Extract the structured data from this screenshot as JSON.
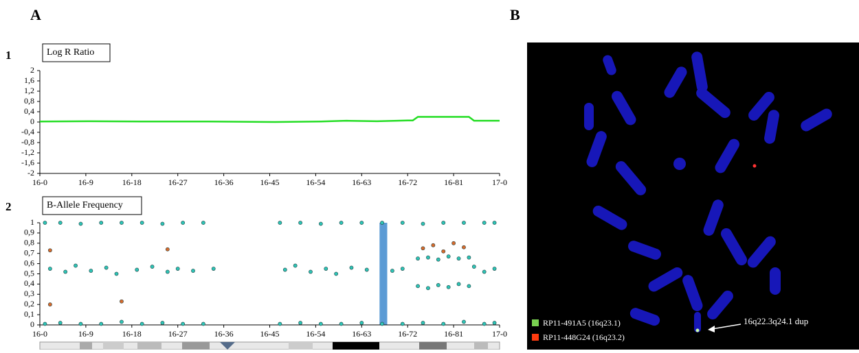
{
  "panel_labels": {
    "a": "A",
    "b": "B",
    "a1": "1",
    "a2": "2"
  },
  "chart_data": [
    {
      "type": "line",
      "title": "Log R Ratio",
      "xlim": [
        0,
        90
      ],
      "xticks": [
        {
          "value": 0,
          "label": "16-0"
        },
        {
          "value": 9,
          "label": "16-9"
        },
        {
          "value": 18,
          "label": "16-18"
        },
        {
          "value": 27,
          "label": "16-27"
        },
        {
          "value": 36,
          "label": "16-36"
        },
        {
          "value": 45,
          "label": "16-45"
        },
        {
          "value": 54,
          "label": "16-54"
        },
        {
          "value": 63,
          "label": "16-63"
        },
        {
          "value": 72,
          "label": "16-72"
        },
        {
          "value": 81,
          "label": "16-81"
        },
        {
          "value": 90,
          "label": "17-0"
        }
      ],
      "ylim": [
        -2,
        2
      ],
      "yticks": [
        2,
        {
          "value": 1.6,
          "label": "1,6"
        },
        {
          "value": 1.2,
          "label": "1,2"
        },
        {
          "value": 0.8,
          "label": "0,8"
        },
        {
          "value": 0.4,
          "label": "0,4"
        },
        0,
        {
          "value": -0.4,
          "label": "-0,4"
        },
        {
          "value": -0.8,
          "label": "-0,8"
        },
        {
          "value": -1.2,
          "label": "-1,2"
        },
        {
          "value": -1.6,
          "label": "-1,6"
        },
        -2
      ],
      "series": [
        {
          "color": "#22dd22",
          "x": [
            0,
            10,
            20,
            33,
            46,
            55,
            60,
            66,
            72,
            73,
            74,
            78,
            84,
            85,
            90
          ],
          "y": [
            0.02,
            0.03,
            0.02,
            0.02,
            0.0,
            0.02,
            0.05,
            0.03,
            0.06,
            0.06,
            0.2,
            0.2,
            0.2,
            0.05,
            0.05
          ]
        }
      ]
    },
    {
      "type": "scatter",
      "title": "B-Allele Frequency",
      "xlim": [
        0,
        90
      ],
      "xticks": [
        {
          "value": 0,
          "label": "16-0"
        },
        {
          "value": 9,
          "label": "16-9"
        },
        {
          "value": 18,
          "label": "16-18"
        },
        {
          "value": 27,
          "label": "16-27"
        },
        {
          "value": 36,
          "label": "16-36"
        },
        {
          "value": 45,
          "label": "16-45"
        },
        {
          "value": 54,
          "label": "16-54"
        },
        {
          "value": 63,
          "label": "16-63"
        },
        {
          "value": 72,
          "label": "16-72"
        },
        {
          "value": 81,
          "label": "16-81"
        },
        {
          "value": 90,
          "label": "17-0"
        }
      ],
      "ylim": [
        0,
        1
      ],
      "yticks": [
        1,
        {
          "value": 0.9,
          "label": "0,9"
        },
        {
          "value": 0.8,
          "label": "0,8"
        },
        {
          "value": 0.7,
          "label": "0,7"
        },
        {
          "value": 0.6,
          "label": "0,6"
        },
        {
          "value": 0.5,
          "label": "0,5"
        },
        {
          "value": 0.4,
          "label": "0,4"
        },
        {
          "value": 0.3,
          "label": "0,3"
        },
        {
          "value": 0.2,
          "label": "0,2"
        },
        {
          "value": 0.1,
          "label": "0,1"
        },
        0
      ],
      "highlight": {
        "xlim": [
          66.5,
          68
        ],
        "color": "#5b9bd5"
      },
      "series": [
        {
          "color": "#2ec4b6",
          "x": [
            1,
            4,
            8,
            12,
            16,
            20,
            24,
            28,
            32,
            47,
            51,
            55,
            59,
            63,
            67,
            71,
            75,
            79,
            83,
            87,
            89,
            1,
            4,
            8,
            12,
            16,
            20,
            24,
            28,
            32,
            47,
            51,
            55,
            59,
            63,
            67,
            71,
            75,
            79,
            83,
            87,
            89,
            2,
            5,
            7,
            10,
            13,
            15,
            19,
            22,
            25,
            27,
            30,
            34,
            48,
            50,
            53,
            56,
            58,
            61,
            64,
            69,
            71,
            85,
            87,
            89,
            74,
            76,
            78,
            80,
            82,
            84,
            74,
            76,
            78,
            80,
            82,
            84
          ],
          "y": [
            1,
            1,
            0.99,
            1,
            1,
            1,
            0.99,
            1,
            1,
            1,
            1,
            0.99,
            1,
            1,
            1,
            1,
            0.99,
            1,
            1,
            1,
            1,
            0.01,
            0.02,
            0.01,
            0.01,
            0.03,
            0.01,
            0.02,
            0.01,
            0.01,
            0.01,
            0.02,
            0.01,
            0.01,
            0.02,
            0.01,
            0.01,
            0.02,
            0.01,
            0.03,
            0.01,
            0.02,
            0.55,
            0.52,
            0.58,
            0.53,
            0.56,
            0.5,
            0.54,
            0.57,
            0.52,
            0.55,
            0.53,
            0.55,
            0.54,
            0.58,
            0.52,
            0.55,
            0.5,
            0.56,
            0.54,
            0.53,
            0.55,
            0.57,
            0.52,
            0.55,
            0.65,
            0.66,
            0.64,
            0.67,
            0.65,
            0.66,
            0.38,
            0.36,
            0.39,
            0.37,
            0.4,
            0.38
          ]
        },
        {
          "color": "#d86a2c",
          "x": [
            2,
            25,
            75,
            77,
            79,
            81,
            83,
            2,
            16
          ],
          "y": [
            0.73,
            0.74,
            0.75,
            0.78,
            0.72,
            0.8,
            0.76,
            0.2,
            0.23
          ]
        }
      ]
    }
  ],
  "image_legend": {
    "probe_green": "RP11-491A5 (16q23.1)",
    "probe_red": "RP11-448G24 (16q23.2)",
    "arrow_label": "16q22.3q24.1 dup"
  }
}
